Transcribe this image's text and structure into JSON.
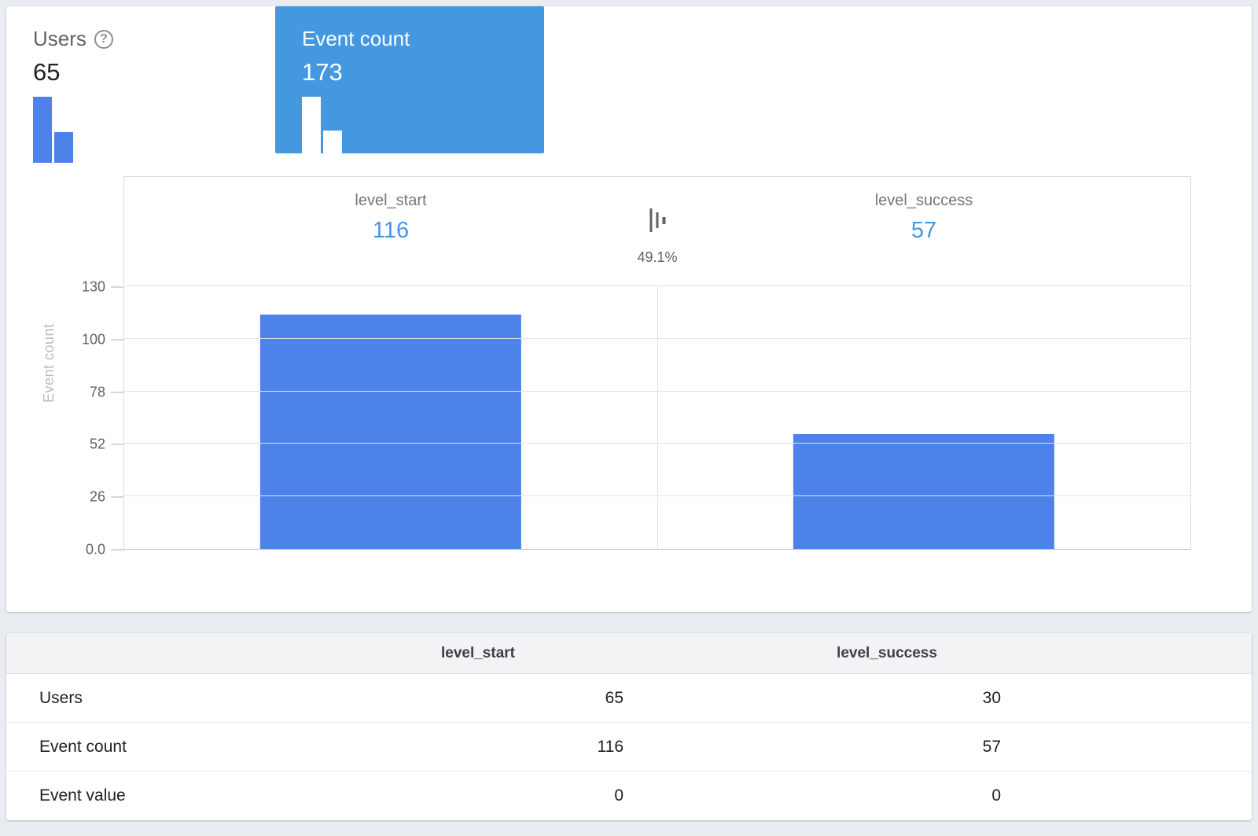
{
  "cards": [
    {
      "label": "Users",
      "value": "65",
      "selected": false,
      "help_icon": true,
      "sparkline": [
        65,
        30
      ]
    },
    {
      "label": "Event count",
      "value": "173",
      "selected": true,
      "help_icon": false,
      "sparkline": [
        116,
        57
      ]
    }
  ],
  "chart_data": {
    "type": "bar",
    "categories": [
      "level_start",
      "level_success"
    ],
    "values": [
      116,
      57
    ],
    "ylabel": "Event count",
    "ylim": [
      0,
      130
    ],
    "ytick_labels": [
      "0.0",
      "26",
      "52",
      "78",
      "100",
      "130"
    ],
    "grid": true,
    "legend_position": "bottom",
    "between_percent": "49.1%",
    "legend_label": "filter % between events"
  },
  "table": {
    "columns": [
      "level_start",
      "level_success"
    ],
    "rows": [
      {
        "label": "Users",
        "values": [
          "65",
          "30"
        ]
      },
      {
        "label": "Event count",
        "values": [
          "116",
          "57"
        ]
      },
      {
        "label": "Event value",
        "values": [
          "0",
          "0"
        ]
      }
    ]
  },
  "colors": {
    "selected_card_bg": "#4398e0",
    "bar_fill": "#4d82e8",
    "value_link": "#4296ea",
    "page_bg": "#e9edf1"
  }
}
